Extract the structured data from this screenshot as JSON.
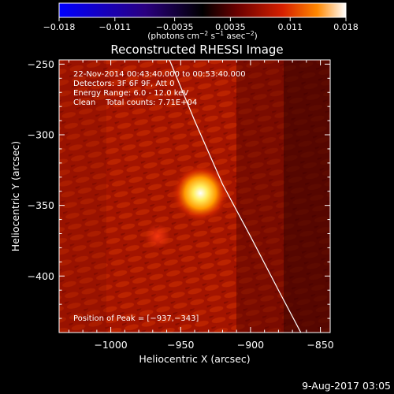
{
  "chart_data": {
    "type": "heatmap",
    "title": "Reconstructed RHESSI Image",
    "xlabel": "Heliocentric X (arcsec)",
    "ylabel": "Heliocentric Y (arcsec)",
    "xlim": [
      -1037,
      -843
    ],
    "ylim": [
      -440,
      -247
    ],
    "x_ticks": [
      -1000,
      -950,
      -900,
      -850
    ],
    "x_tick_labels": [
      "−1000",
      "−950",
      "−900",
      "−850"
    ],
    "y_ticks": [
      -250,
      -300,
      -350,
      -400
    ],
    "y_tick_labels": [
      "−250",
      "−300",
      "−350",
      "−400"
    ],
    "colorbar": {
      "range": [
        -0.018,
        0.018
      ],
      "ticks": [
        -0.018,
        -0.011,
        -0.0035,
        0.0035,
        0.011,
        0.018
      ],
      "tick_labels": [
        "−0.018",
        "−0.011",
        "−0.0035",
        "0.0035",
        "0.011",
        "0.018"
      ],
      "units_main": "(photons cm",
      "units_exp1": "−2",
      "units_mid1": " s",
      "units_exp2": "−1",
      "units_mid2": " asec",
      "units_exp3": "−2",
      "units_end": ")",
      "colors": [
        "#0000ff",
        "#2a0080",
        "#000000",
        "#6a0000",
        "#d62000",
        "#ff8800",
        "#ffffff"
      ]
    },
    "annotations": {
      "time_range": "22-Nov-2014 00:43:40.000 to 00:53:40.000",
      "detectors": "Detectors: 3F 6F 9F, Att 0",
      "energy": "Energy Range: 6.0 - 12.0 keV",
      "clean": "Clean    Total counts: 7.71E+04",
      "peak": "Position of Peak = [−937,−343]"
    },
    "peak_position": [
      -937,
      -343
    ],
    "limb_curve": [
      [
        -958,
        -247
      ],
      [
        -940,
        -290
      ],
      [
        -920,
        -335
      ],
      [
        -900,
        -372
      ],
      [
        -880,
        -410
      ],
      [
        -864,
        -440
      ]
    ]
  },
  "footer": {
    "date": "9-Aug-2017 03:05"
  }
}
